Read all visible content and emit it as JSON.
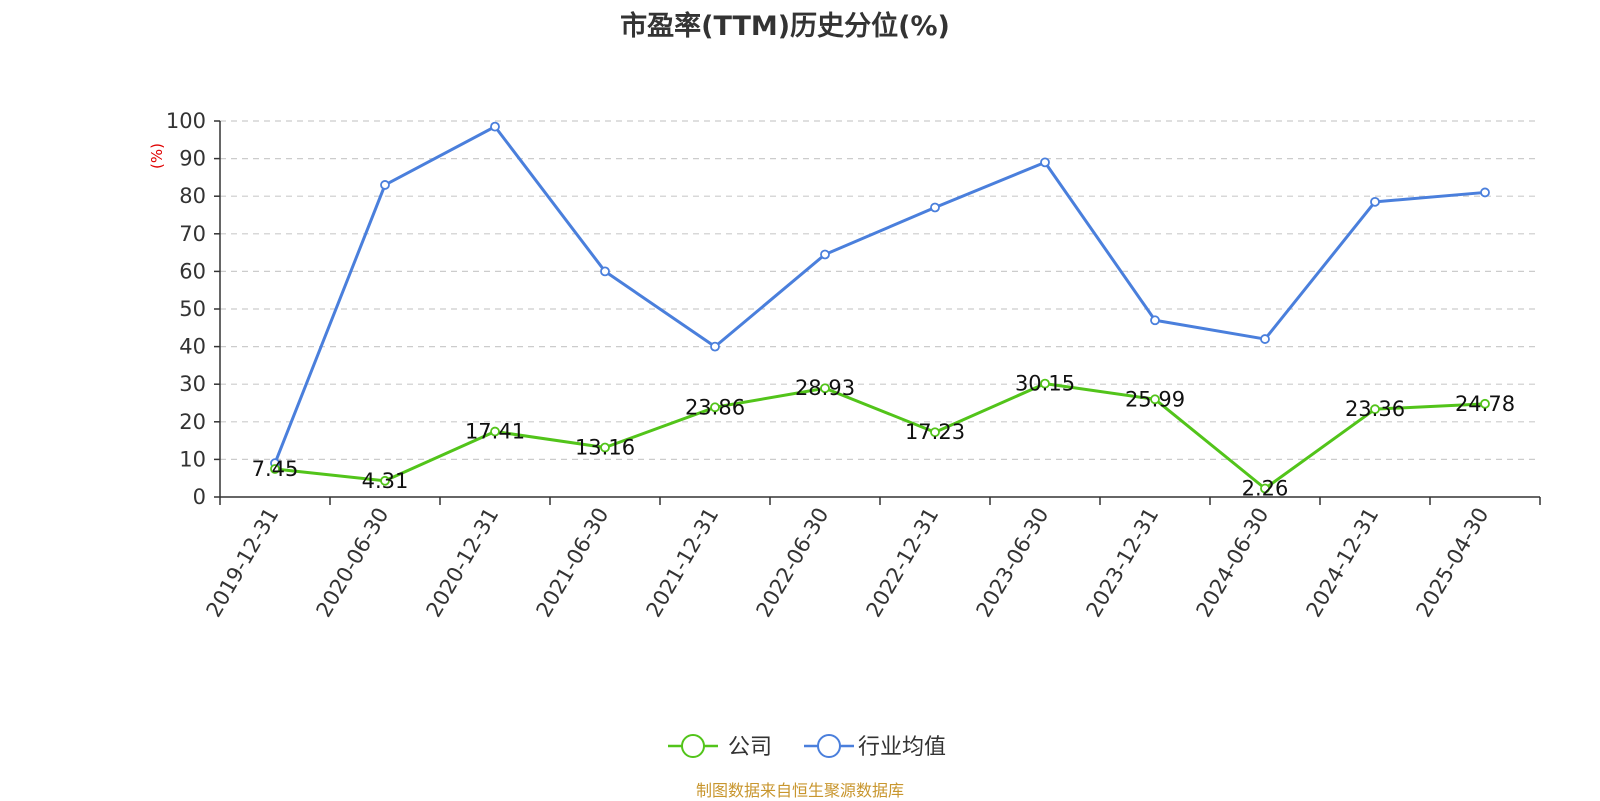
{
  "chart_data": {
    "type": "line",
    "title": "市盈率(TTM)历史分位(%)",
    "y_unit_label": "(%)",
    "categories": [
      "2019-12-31",
      "2020-06-30",
      "2020-12-31",
      "2021-06-30",
      "2021-12-31",
      "2022-06-30",
      "2022-12-31",
      "2023-06-30",
      "2023-12-31",
      "2024-06-30",
      "2024-12-31",
      "2025-04-30"
    ],
    "ylim": [
      0,
      100
    ],
    "yticks": [
      0,
      10,
      20,
      30,
      40,
      50,
      60,
      70,
      80,
      90,
      100
    ],
    "grid": true,
    "legend_position": "bottom",
    "series": [
      {
        "name": "公司",
        "color": "#52c41a",
        "show_labels": true,
        "values": [
          7.45,
          4.31,
          17.41,
          13.16,
          23.86,
          28.93,
          17.23,
          30.15,
          25.99,
          2.26,
          23.36,
          24.78
        ]
      },
      {
        "name": "行业均值",
        "color": "#4a7fdc",
        "show_labels": false,
        "values": [
          9.0,
          83.0,
          98.5,
          60.0,
          40.0,
          64.5,
          77.0,
          89.0,
          47.0,
          42.0,
          78.5,
          81.0
        ]
      }
    ]
  },
  "source_note": "制图数据来自恒生聚源数据库"
}
